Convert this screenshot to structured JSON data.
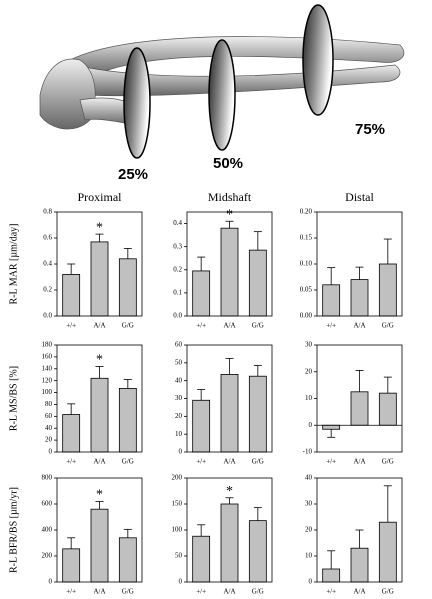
{
  "image": {
    "labels": [
      "25%",
      "50%",
      "75%"
    ]
  },
  "chart_data": [
    {
      "type": "bar",
      "title": "Proximal",
      "y_label": "R-L MAR [µm/day]",
      "categories": [
        "+/+",
        "A/A",
        "G/G"
      ],
      "values": [
        0.32,
        0.57,
        0.44
      ],
      "errors": [
        0.08,
        0.06,
        0.08
      ],
      "color": "#c0c0c0",
      "ylim": [
        0,
        0.8
      ],
      "yticks": [
        {
          "value": 0,
          "label": "0.0"
        },
        0.2,
        0.4,
        0.6,
        0.8
      ],
      "annotations": [
        {
          "text": "*",
          "category": "A/A"
        }
      ]
    },
    {
      "type": "bar",
      "title": "Midshaft",
      "categories": [
        "+/+",
        "A/A",
        "G/G"
      ],
      "values": [
        0.195,
        0.38,
        0.285
      ],
      "errors": [
        0.06,
        0.03,
        0.08
      ],
      "color": "#c0c0c0",
      "ylim": [
        0,
        0.45
      ],
      "yticks": [
        {
          "value": 0,
          "label": "0.0"
        },
        0.1,
        0.2,
        0.3,
        0.4
      ],
      "annotations": [
        {
          "text": "*",
          "category": "A/A"
        }
      ]
    },
    {
      "type": "bar",
      "title": "Distal",
      "categories": [
        "+/+",
        "A/A",
        "G/G"
      ],
      "values": [
        0.06,
        0.07,
        0.1
      ],
      "errors": [
        0.033,
        0.024,
        0.048
      ],
      "color": "#c0c0c0",
      "ylim": [
        0,
        0.2
      ],
      "yticks": [
        {
          "value": 0,
          "label": "0.00"
        },
        0.05,
        {
          "value": 0.1,
          "label": "0.10"
        },
        0.15,
        {
          "value": 0.2,
          "label": "0.20"
        }
      ]
    },
    {
      "type": "bar",
      "y_label": "R-L MS/BS [%]",
      "categories": [
        "+/+",
        "A/A",
        "G/G"
      ],
      "values": [
        63,
        124,
        107
      ],
      "errors": [
        18,
        20,
        15
      ],
      "color": "#c0c0c0",
      "ylim": [
        0,
        180
      ],
      "yticks": [
        0,
        20,
        40,
        60,
        80,
        100,
        120,
        140,
        160,
        180
      ],
      "annotations": [
        {
          "text": "*",
          "category": "A/A"
        }
      ]
    },
    {
      "type": "bar",
      "categories": [
        "+/+",
        "A/A",
        "G/G"
      ],
      "values": [
        29,
        43.5,
        42.5
      ],
      "errors": [
        6,
        9,
        6
      ],
      "color": "#c0c0c0",
      "ylim": [
        0,
        60
      ],
      "yticks": [
        0,
        10,
        20,
        30,
        40,
        50,
        60
      ]
    },
    {
      "type": "bar",
      "categories": [
        "+/+",
        "A/A",
        "G/G"
      ],
      "values": [
        -1.5,
        12.5,
        12
      ],
      "errors": [
        3,
        8,
        6
      ],
      "color": "#c0c0c0",
      "ylim": [
        -10,
        30
      ],
      "yticks": [
        -10,
        0,
        10,
        20,
        30
      ]
    },
    {
      "type": "bar",
      "y_label": "R-L BFR/BS [µm/yr]",
      "categories": [
        "+/+",
        "A/A",
        "G/G"
      ],
      "values": [
        255,
        560,
        340
      ],
      "errors": [
        85,
        60,
        65
      ],
      "color": "#c0c0c0",
      "ylim": [
        0,
        800
      ],
      "yticks": [
        0,
        200,
        400,
        600,
        800
      ],
      "annotations": [
        {
          "text": "*",
          "category": "A/A"
        }
      ]
    },
    {
      "type": "bar",
      "categories": [
        "+/+",
        "A/A",
        "G/G"
      ],
      "values": [
        88,
        150,
        118
      ],
      "errors": [
        22,
        12,
        25
      ],
      "color": "#c0c0c0",
      "ylim": [
        0,
        200
      ],
      "yticks": [
        0,
        50,
        100,
        150,
        200
      ],
      "annotations": [
        {
          "text": "*",
          "category": "A/A"
        }
      ]
    },
    {
      "type": "bar",
      "categories": [
        "+/+",
        "A/A",
        "G/G"
      ],
      "values": [
        5,
        13,
        23
      ],
      "errors": [
        7,
        7,
        14
      ],
      "color": "#c0c0c0",
      "ylim": [
        0,
        40
      ],
      "yticks": [
        0,
        10,
        20,
        30,
        40
      ]
    }
  ]
}
